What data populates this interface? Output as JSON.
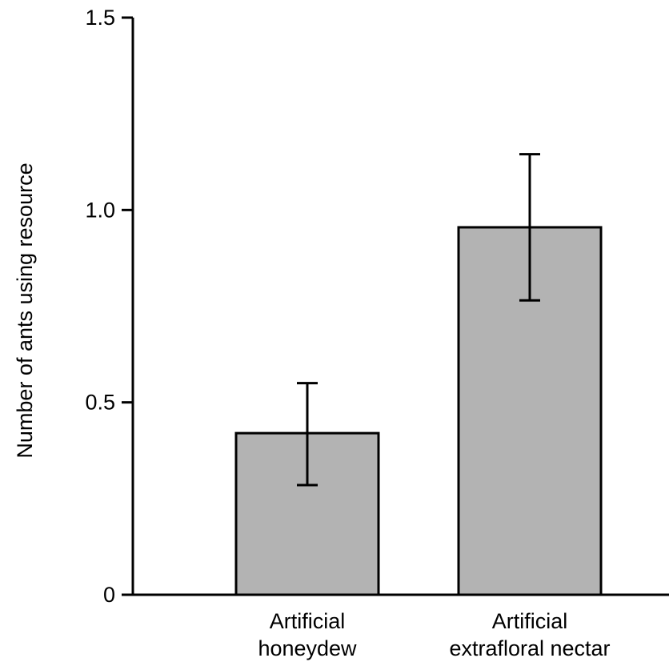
{
  "chart_data": {
    "type": "bar",
    "title": "",
    "xlabel": "",
    "ylabel": "Number of ants using resource",
    "ylim": [
      0,
      1.5
    ],
    "yticks": [
      0,
      0.5,
      1.0,
      1.5
    ],
    "ytick_labels": [
      "0",
      "0.5",
      "1.0",
      "1.5"
    ],
    "grid": false,
    "categories": [
      [
        "Artificial",
        "honeydew"
      ],
      [
        "Artificial",
        "extrafloral nectar"
      ]
    ],
    "values": [
      0.42,
      0.955
    ],
    "error_upper": [
      0.55,
      1.145
    ],
    "error_lower": [
      0.285,
      0.765
    ],
    "bar_color": "#b3b3b3",
    "edge_color": "#000000"
  }
}
